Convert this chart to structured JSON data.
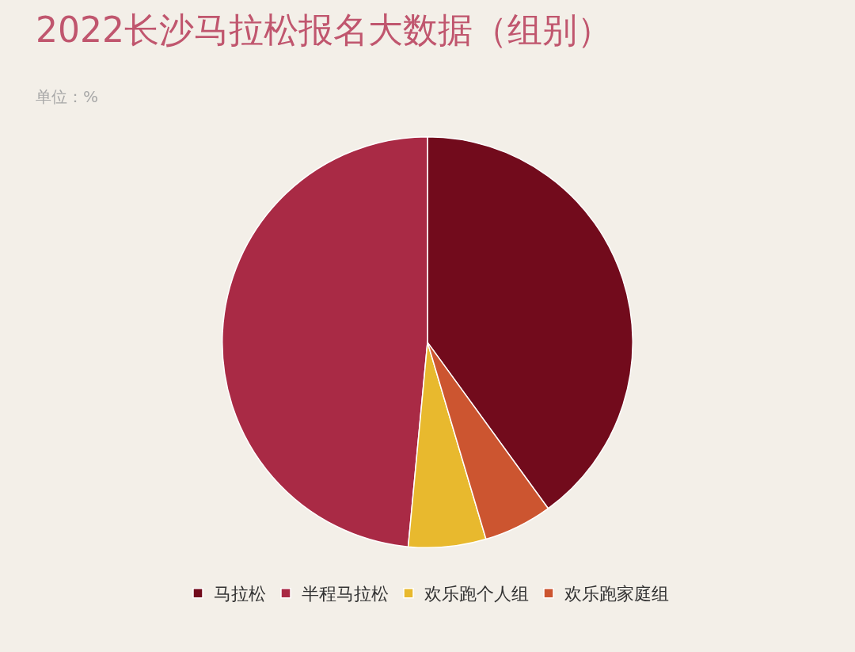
{
  "chart_data": {
    "type": "pie",
    "title": "2022长沙马拉松报名大数据（组别）",
    "subtitle": "单位：%",
    "categories": [
      "马拉松",
      "半程马拉松",
      "欢乐跑个人组",
      "欢乐跑家庭组"
    ],
    "values": [
      40,
      48.5,
      6.1,
      5.4
    ],
    "colors": [
      "#720b1c",
      "#a92a45",
      "#e8b92e",
      "#cc5530"
    ],
    "legend": "bottom"
  }
}
